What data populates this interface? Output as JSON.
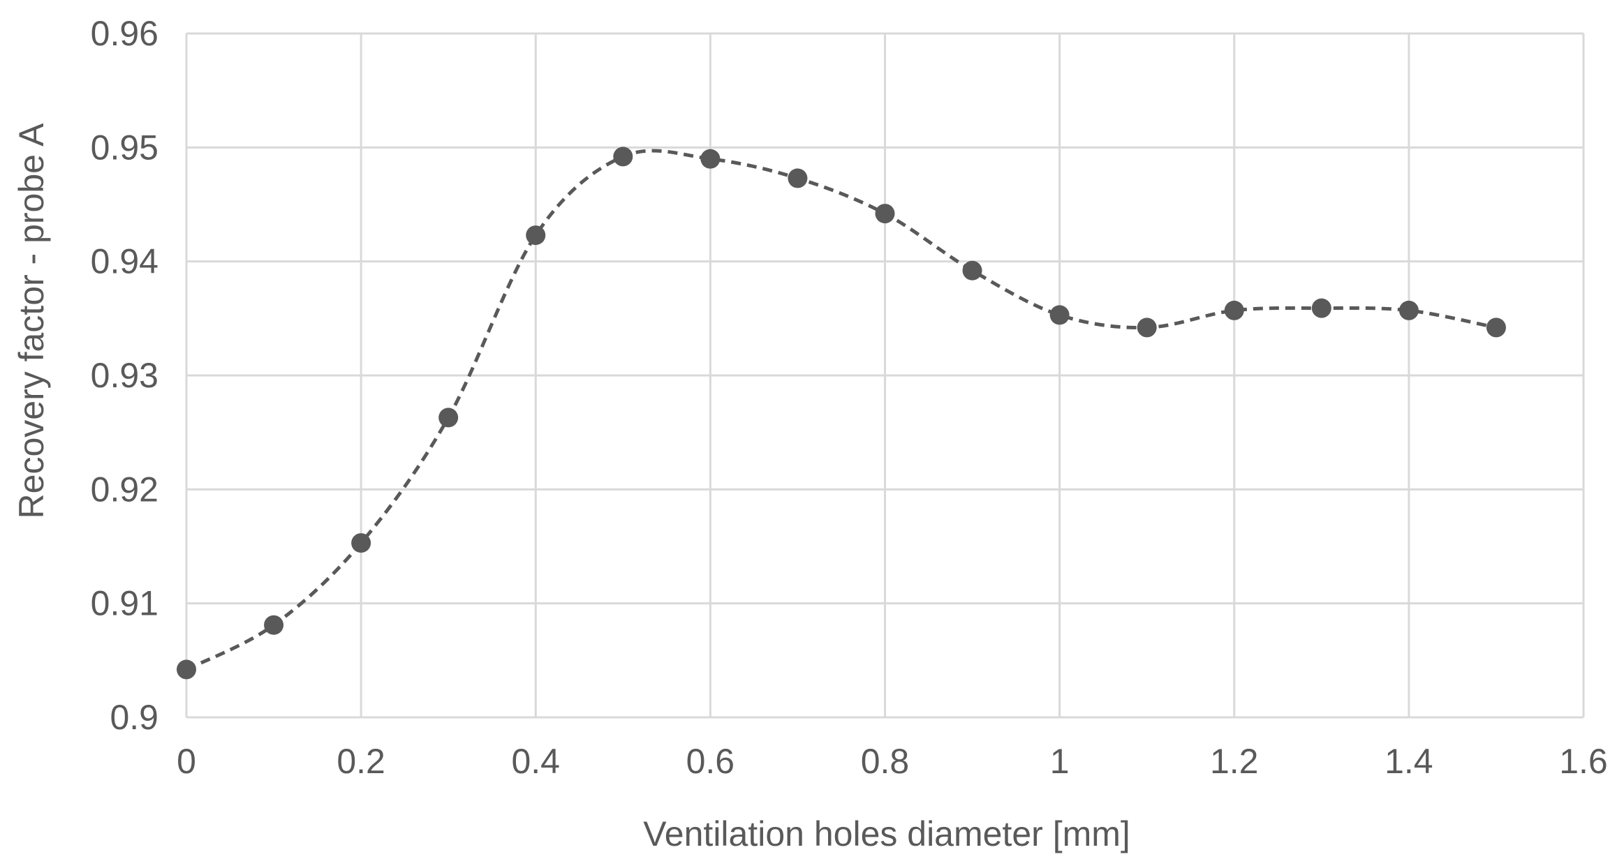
{
  "chart_data": {
    "type": "scatter",
    "title": "",
    "xlabel": "Ventilation holes diameter [mm]",
    "ylabel": "Recovery factor - probe A",
    "xlim": [
      0,
      1.6
    ],
    "ylim": [
      0.9,
      0.96
    ],
    "x_ticks": [
      "0",
      "0.2",
      "0.4",
      "0.6",
      "0.8",
      "1",
      "1.2",
      "1.4",
      "1.6"
    ],
    "y_ticks": [
      "0.9",
      "0.91",
      "0.92",
      "0.93",
      "0.94",
      "0.95",
      "0.96"
    ],
    "grid": true,
    "legend": "none",
    "line_style": "dashed-smooth",
    "marker": "circle",
    "series_color": "#595959",
    "grid_color": "#d9d9d9",
    "series": [
      {
        "x": [
          0,
          0.1,
          0.2,
          0.3,
          0.4,
          0.5,
          0.6,
          0.7,
          0.8,
          0.9,
          1.0,
          1.1,
          1.2,
          1.3,
          1.4,
          1.5
        ],
        "y": [
          0.9042,
          0.9081,
          0.9153,
          0.9263,
          0.9423,
          0.9492,
          0.949,
          0.9473,
          0.9442,
          0.9392,
          0.9353,
          0.9342,
          0.9357,
          0.9359,
          0.9357,
          0.9342
        ]
      }
    ]
  }
}
